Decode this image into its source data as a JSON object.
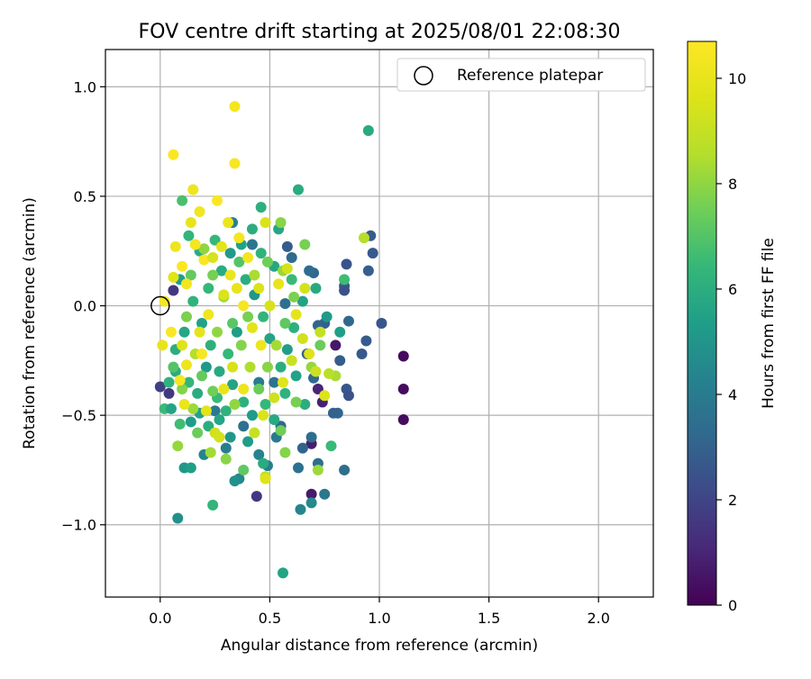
{
  "chart_data": {
    "type": "scatter",
    "title": "FOV centre drift starting at 2025/08/01 22:08:30",
    "xlabel": "Angular distance from reference (arcmin)",
    "ylabel": "Rotation from reference (arcmin)",
    "xlim": [
      -0.25,
      2.25
    ],
    "ylim": [
      -1.33,
      1.17
    ],
    "xticks": [
      0.0,
      0.5,
      1.0,
      1.5,
      2.0
    ],
    "yticks": [
      -1.0,
      -0.5,
      0.0,
      0.5,
      1.0
    ],
    "xtick_labels": [
      "0.0",
      "0.5",
      "1.0",
      "1.5",
      "2.0"
    ],
    "ytick_labels": [
      "−1.0",
      "−0.5",
      "0.0",
      "0.5",
      "1.0"
    ],
    "grid": true,
    "legend": {
      "position": "top-right",
      "entries": [
        "Reference platepar"
      ]
    },
    "reference_point": {
      "x": 0.0,
      "y": 0.0,
      "label": "Reference platepar"
    },
    "colorbar": {
      "label": "Hours from first FF file",
      "colormap": "viridis",
      "range": [
        0,
        10.7
      ],
      "ticks": [
        0,
        2,
        4,
        6,
        8,
        10
      ],
      "tick_labels": [
        "0",
        "2",
        "4",
        "6",
        "8",
        "10"
      ]
    },
    "points": [
      {
        "x": 1.11,
        "y": -0.23,
        "c": 0.3
      },
      {
        "x": 1.11,
        "y": -0.38,
        "c": 0.3
      },
      {
        "x": 1.11,
        "y": -0.52,
        "c": 0.3
      },
      {
        "x": 0.8,
        "y": -0.18,
        "c": 0.6
      },
      {
        "x": 0.69,
        "y": -0.86,
        "c": 0.7
      },
      {
        "x": 0.69,
        "y": -0.63,
        "c": 0.8
      },
      {
        "x": 0.72,
        "y": -0.38,
        "c": 1.0
      },
      {
        "x": 0.74,
        "y": -0.44,
        "c": 0.9
      },
      {
        "x": 0.44,
        "y": -0.87,
        "c": 1.6
      },
      {
        "x": 0.06,
        "y": 0.07,
        "c": 1.5
      },
      {
        "x": 0.04,
        "y": -0.4,
        "c": 1.6
      },
      {
        "x": 0.0,
        "y": -0.37,
        "c": 1.8
      },
      {
        "x": 1.01,
        "y": -0.08,
        "c": 2.6
      },
      {
        "x": 0.97,
        "y": 0.24,
        "c": 2.7
      },
      {
        "x": 0.96,
        "y": 0.32,
        "c": 2.8
      },
      {
        "x": 0.95,
        "y": 0.16,
        "c": 2.9
      },
      {
        "x": 0.94,
        "y": -0.16,
        "c": 2.8
      },
      {
        "x": 0.92,
        "y": -0.22,
        "c": 2.7
      },
      {
        "x": 0.85,
        "y": 0.19,
        "c": 2.5
      },
      {
        "x": 0.84,
        "y": 0.09,
        "c": 3.0
      },
      {
        "x": 0.84,
        "y": 0.07,
        "c": 2.4
      },
      {
        "x": 0.85,
        "y": -0.38,
        "c": 2.6
      },
      {
        "x": 0.86,
        "y": -0.41,
        "c": 2.5
      },
      {
        "x": 0.84,
        "y": -0.75,
        "c": 3.5
      },
      {
        "x": 0.82,
        "y": -0.25,
        "c": 2.8
      },
      {
        "x": 0.81,
        "y": -0.49,
        "c": 3.1
      },
      {
        "x": 0.79,
        "y": -0.49,
        "c": 3.0
      },
      {
        "x": 0.86,
        "y": -0.07,
        "c": 3.2
      },
      {
        "x": 0.75,
        "y": -0.08,
        "c": 2.9
      },
      {
        "x": 0.72,
        "y": -0.09,
        "c": 3.1
      },
      {
        "x": 0.7,
        "y": 0.15,
        "c": 3.2
      },
      {
        "x": 0.68,
        "y": 0.16,
        "c": 3.4
      },
      {
        "x": 0.67,
        "y": -0.22,
        "c": 3.0
      },
      {
        "x": 0.7,
        "y": -0.33,
        "c": 3.3
      },
      {
        "x": 0.69,
        "y": -0.6,
        "c": 3.4
      },
      {
        "x": 0.65,
        "y": -0.65,
        "c": 3.1
      },
      {
        "x": 0.63,
        "y": -0.74,
        "c": 3.6
      },
      {
        "x": 0.64,
        "y": -0.93,
        "c": 4.4
      },
      {
        "x": 0.69,
        "y": -0.9,
        "c": 4.6
      },
      {
        "x": 0.75,
        "y": -0.86,
        "c": 3.8
      },
      {
        "x": 0.72,
        "y": -0.72,
        "c": 3.5
      },
      {
        "x": 0.58,
        "y": 0.27,
        "c": 2.8
      },
      {
        "x": 0.6,
        "y": 0.22,
        "c": 3.3
      },
      {
        "x": 0.57,
        "y": 0.01,
        "c": 3.5
      },
      {
        "x": 0.52,
        "y": -0.35,
        "c": 3.7
      },
      {
        "x": 0.55,
        "y": -0.55,
        "c": 3.2
      },
      {
        "x": 0.53,
        "y": -0.6,
        "c": 3.9
      },
      {
        "x": 0.49,
        "y": -0.73,
        "c": 4.1
      },
      {
        "x": 0.45,
        "y": -0.68,
        "c": 4.3
      },
      {
        "x": 0.36,
        "y": -0.79,
        "c": 4.5
      },
      {
        "x": 0.34,
        "y": -0.8,
        "c": 4.8
      },
      {
        "x": 0.33,
        "y": 0.38,
        "c": 4.2
      },
      {
        "x": 0.42,
        "y": 0.28,
        "c": 3.8
      },
      {
        "x": 0.45,
        "y": -0.35,
        "c": 4.0
      },
      {
        "x": 0.38,
        "y": -0.55,
        "c": 3.6
      },
      {
        "x": 0.3,
        "y": -0.65,
        "c": 4.1
      },
      {
        "x": 0.25,
        "y": -0.48,
        "c": 3.9
      },
      {
        "x": 0.2,
        "y": -0.68,
        "c": 4.4
      },
      {
        "x": 0.08,
        "y": -0.97,
        "c": 4.8
      },
      {
        "x": 0.11,
        "y": -0.74,
        "c": 5.1
      },
      {
        "x": 0.14,
        "y": -0.74,
        "c": 5.4
      },
      {
        "x": 0.56,
        "y": -1.22,
        "c": 5.6
      },
      {
        "x": 0.95,
        "y": 0.8,
        "c": 5.8
      },
      {
        "x": 0.63,
        "y": 0.53,
        "c": 5.9
      },
      {
        "x": 0.46,
        "y": 0.45,
        "c": 6.1
      },
      {
        "x": 0.54,
        "y": 0.35,
        "c": 5.7
      },
      {
        "x": 0.42,
        "y": 0.35,
        "c": 6.0
      },
      {
        "x": 0.37,
        "y": 0.28,
        "c": 5.5
      },
      {
        "x": 0.32,
        "y": 0.24,
        "c": 5.2
      },
      {
        "x": 0.25,
        "y": 0.3,
        "c": 6.4
      },
      {
        "x": 0.18,
        "y": 0.25,
        "c": 5.9
      },
      {
        "x": 0.13,
        "y": 0.32,
        "c": 6.3
      },
      {
        "x": 0.1,
        "y": 0.48,
        "c": 6.8
      },
      {
        "x": 0.04,
        "y": -0.35,
        "c": 6.2
      },
      {
        "x": 0.02,
        "y": -0.47,
        "c": 6.5
      },
      {
        "x": 0.07,
        "y": -0.3,
        "c": 5.9
      },
      {
        "x": 0.05,
        "y": -0.47,
        "c": 5.6
      },
      {
        "x": 0.09,
        "y": -0.54,
        "c": 6.6
      },
      {
        "x": 0.14,
        "y": -0.53,
        "c": 5.3
      },
      {
        "x": 0.18,
        "y": -0.49,
        "c": 5.5
      },
      {
        "x": 0.22,
        "y": -0.55,
        "c": 6.0
      },
      {
        "x": 0.27,
        "y": -0.52,
        "c": 5.7
      },
      {
        "x": 0.3,
        "y": -0.48,
        "c": 6.2
      },
      {
        "x": 0.32,
        "y": -0.6,
        "c": 5.1
      },
      {
        "x": 0.4,
        "y": -0.62,
        "c": 5.3
      },
      {
        "x": 0.47,
        "y": -0.72,
        "c": 5.9
      },
      {
        "x": 0.24,
        "y": -0.91,
        "c": 6.3
      },
      {
        "x": 0.78,
        "y": -0.64,
        "c": 6.5
      },
      {
        "x": 0.84,
        "y": 0.12,
        "c": 6.6
      },
      {
        "x": 0.82,
        "y": -0.12,
        "c": 5.4
      },
      {
        "x": 0.76,
        "y": -0.05,
        "c": 5.2
      },
      {
        "x": 0.71,
        "y": 0.08,
        "c": 5.8
      },
      {
        "x": 0.65,
        "y": 0.02,
        "c": 5.5
      },
      {
        "x": 0.61,
        "y": -0.1,
        "c": 6.1
      },
      {
        "x": 0.58,
        "y": -0.2,
        "c": 5.4
      },
      {
        "x": 0.55,
        "y": -0.28,
        "c": 6.0
      },
      {
        "x": 0.5,
        "y": -0.15,
        "c": 5.6
      },
      {
        "x": 0.47,
        "y": -0.05,
        "c": 6.3
      },
      {
        "x": 0.43,
        "y": 0.05,
        "c": 5.1
      },
      {
        "x": 0.39,
        "y": 0.12,
        "c": 6.0
      },
      {
        "x": 0.35,
        "y": -0.12,
        "c": 5.3
      },
      {
        "x": 0.31,
        "y": -0.22,
        "c": 6.4
      },
      {
        "x": 0.27,
        "y": -0.3,
        "c": 5.8
      },
      {
        "x": 0.23,
        "y": -0.18,
        "c": 6.1
      },
      {
        "x": 0.19,
        "y": -0.08,
        "c": 5.5
      },
      {
        "x": 0.15,
        "y": 0.02,
        "c": 6.2
      },
      {
        "x": 0.11,
        "y": -0.12,
        "c": 5.7
      },
      {
        "x": 0.07,
        "y": -0.2,
        "c": 6.0
      },
      {
        "x": 0.09,
        "y": 0.12,
        "c": 5.4
      },
      {
        "x": 0.13,
        "y": -0.35,
        "c": 6.3
      },
      {
        "x": 0.17,
        "y": -0.4,
        "c": 5.9
      },
      {
        "x": 0.21,
        "y": -0.28,
        "c": 5.2
      },
      {
        "x": 0.26,
        "y": -0.42,
        "c": 6.5
      },
      {
        "x": 0.33,
        "y": -0.36,
        "c": 5.6
      },
      {
        "x": 0.38,
        "y": -0.44,
        "c": 6.1
      },
      {
        "x": 0.42,
        "y": -0.5,
        "c": 5.3
      },
      {
        "x": 0.48,
        "y": -0.45,
        "c": 6.4
      },
      {
        "x": 0.52,
        "y": -0.52,
        "c": 5.8
      },
      {
        "x": 0.57,
        "y": -0.4,
        "c": 6.2
      },
      {
        "x": 0.62,
        "y": -0.32,
        "c": 5.5
      },
      {
        "x": 0.66,
        "y": -0.45,
        "c": 6.0
      },
      {
        "x": 0.6,
        "y": 0.12,
        "c": 6.5
      },
      {
        "x": 0.52,
        "y": 0.18,
        "c": 5.7
      },
      {
        "x": 0.46,
        "y": 0.24,
        "c": 6.2
      },
      {
        "x": 0.28,
        "y": 0.16,
        "c": 5.9
      },
      {
        "x": 0.22,
        "y": 0.08,
        "c": 6.4
      },
      {
        "x": 0.66,
        "y": 0.28,
        "c": 7.6
      },
      {
        "x": 0.93,
        "y": 0.31,
        "c": 8.6
      },
      {
        "x": 0.8,
        "y": -0.32,
        "c": 8.4
      },
      {
        "x": 0.72,
        "y": -0.75,
        "c": 8.2
      },
      {
        "x": 0.57,
        "y": -0.67,
        "c": 7.8
      },
      {
        "x": 0.55,
        "y": -0.57,
        "c": 7.5
      },
      {
        "x": 0.48,
        "y": -0.78,
        "c": 8.7
      },
      {
        "x": 0.38,
        "y": -0.75,
        "c": 7.2
      },
      {
        "x": 0.3,
        "y": -0.7,
        "c": 7.9
      },
      {
        "x": 0.23,
        "y": -0.67,
        "c": 8.3
      },
      {
        "x": 0.17,
        "y": -0.58,
        "c": 7.4
      },
      {
        "x": 0.08,
        "y": -0.64,
        "c": 8.1
      },
      {
        "x": 0.06,
        "y": -0.28,
        "c": 7.0
      },
      {
        "x": 0.12,
        "y": -0.05,
        "c": 7.7
      },
      {
        "x": 0.14,
        "y": 0.14,
        "c": 7.3
      },
      {
        "x": 0.2,
        "y": 0.26,
        "c": 8.0
      },
      {
        "x": 0.24,
        "y": 0.14,
        "c": 7.6
      },
      {
        "x": 0.29,
        "y": 0.04,
        "c": 8.2
      },
      {
        "x": 0.33,
        "y": -0.08,
        "c": 7.1
      },
      {
        "x": 0.37,
        "y": -0.18,
        "c": 7.8
      },
      {
        "x": 0.41,
        "y": -0.28,
        "c": 8.5
      },
      {
        "x": 0.45,
        "y": -0.38,
        "c": 7.4
      },
      {
        "x": 0.49,
        "y": -0.28,
        "c": 7.9
      },
      {
        "x": 0.53,
        "y": -0.18,
        "c": 8.3
      },
      {
        "x": 0.57,
        "y": -0.08,
        "c": 7.2
      },
      {
        "x": 0.61,
        "y": 0.04,
        "c": 7.7
      },
      {
        "x": 0.56,
        "y": 0.16,
        "c": 8.1
      },
      {
        "x": 0.49,
        "y": 0.2,
        "c": 7.5
      },
      {
        "x": 0.43,
        "y": 0.14,
        "c": 8.4
      },
      {
        "x": 0.36,
        "y": 0.2,
        "c": 7.0
      },
      {
        "x": 0.4,
        "y": -0.05,
        "c": 7.6
      },
      {
        "x": 0.26,
        "y": -0.12,
        "c": 8.0
      },
      {
        "x": 0.19,
        "y": -0.32,
        "c": 7.3
      },
      {
        "x": 0.16,
        "y": -0.22,
        "c": 8.6
      },
      {
        "x": 0.1,
        "y": -0.38,
        "c": 7.8
      },
      {
        "x": 0.15,
        "y": -0.47,
        "c": 8.2
      },
      {
        "x": 0.24,
        "y": -0.39,
        "c": 7.5
      },
      {
        "x": 0.34,
        "y": -0.45,
        "c": 8.0
      },
      {
        "x": 0.62,
        "y": -0.44,
        "c": 7.6
      },
      {
        "x": 0.69,
        "y": -0.28,
        "c": 8.1
      },
      {
        "x": 0.73,
        "y": -0.18,
        "c": 7.4
      },
      {
        "x": 0.77,
        "y": -0.31,
        "c": 8.7
      },
      {
        "x": 0.55,
        "y": 0.38,
        "c": 7.9
      },
      {
        "x": 0.34,
        "y": 0.91,
        "c": 10.4
      },
      {
        "x": 0.06,
        "y": 0.69,
        "c": 10.6
      },
      {
        "x": 0.34,
        "y": 0.65,
        "c": 10.5
      },
      {
        "x": 0.15,
        "y": 0.53,
        "c": 10.2
      },
      {
        "x": 0.26,
        "y": 0.48,
        "c": 10.6
      },
      {
        "x": 0.18,
        "y": 0.43,
        "c": 10.3
      },
      {
        "x": 0.14,
        "y": 0.38,
        "c": 10.0
      },
      {
        "x": 0.31,
        "y": 0.38,
        "c": 10.1
      },
      {
        "x": 0.48,
        "y": 0.38,
        "c": 9.6
      },
      {
        "x": 0.36,
        "y": 0.31,
        "c": 10.4
      },
      {
        "x": 0.28,
        "y": 0.27,
        "c": 9.9
      },
      {
        "x": 0.07,
        "y": 0.27,
        "c": 10.2
      },
      {
        "x": 0.2,
        "y": 0.21,
        "c": 10.5
      },
      {
        "x": 0.1,
        "y": 0.18,
        "c": 10.6
      },
      {
        "x": 0.06,
        "y": 0.13,
        "c": 9.8
      },
      {
        "x": 0.12,
        "y": 0.1,
        "c": 10.3
      },
      {
        "x": 0.02,
        "y": 0.02,
        "c": 10.4
      },
      {
        "x": 0.01,
        "y": -0.18,
        "c": 10.0
      },
      {
        "x": 0.05,
        "y": -0.12,
        "c": 10.6
      },
      {
        "x": 0.1,
        "y": -0.18,
        "c": 9.7
      },
      {
        "x": 0.12,
        "y": -0.27,
        "c": 10.2
      },
      {
        "x": 0.09,
        "y": -0.34,
        "c": 10.5
      },
      {
        "x": 0.18,
        "y": -0.12,
        "c": 9.9
      },
      {
        "x": 0.22,
        "y": -0.04,
        "c": 10.3
      },
      {
        "x": 0.29,
        "y": 0.05,
        "c": 9.6
      },
      {
        "x": 0.32,
        "y": 0.14,
        "c": 10.1
      },
      {
        "x": 0.38,
        "y": 0.0,
        "c": 10.4
      },
      {
        "x": 0.42,
        "y": -0.1,
        "c": 9.8
      },
      {
        "x": 0.46,
        "y": -0.18,
        "c": 10.2
      },
      {
        "x": 0.5,
        "y": 0.0,
        "c": 9.5
      },
      {
        "x": 0.54,
        "y": 0.1,
        "c": 10.0
      },
      {
        "x": 0.58,
        "y": 0.17,
        "c": 9.4
      },
      {
        "x": 0.62,
        "y": -0.04,
        "c": 9.9
      },
      {
        "x": 0.65,
        "y": -0.15,
        "c": 9.3
      },
      {
        "x": 0.68,
        "y": -0.22,
        "c": 9.7
      },
      {
        "x": 0.71,
        "y": -0.3,
        "c": 9.2
      },
      {
        "x": 0.75,
        "y": -0.41,
        "c": 9.6
      },
      {
        "x": 0.73,
        "y": -0.12,
        "c": 9.0
      },
      {
        "x": 0.66,
        "y": 0.08,
        "c": 9.4
      },
      {
        "x": 0.6,
        "y": -0.25,
        "c": 9.1
      },
      {
        "x": 0.56,
        "y": -0.35,
        "c": 9.8
      },
      {
        "x": 0.52,
        "y": -0.42,
        "c": 9.2
      },
      {
        "x": 0.47,
        "y": -0.5,
        "c": 9.6
      },
      {
        "x": 0.43,
        "y": -0.58,
        "c": 9.0
      },
      {
        "x": 0.38,
        "y": -0.38,
        "c": 10.2
      },
      {
        "x": 0.33,
        "y": -0.28,
        "c": 9.5
      },
      {
        "x": 0.29,
        "y": -0.38,
        "c": 10.0
      },
      {
        "x": 0.25,
        "y": -0.58,
        "c": 9.3
      },
      {
        "x": 0.21,
        "y": -0.48,
        "c": 9.8
      },
      {
        "x": 0.11,
        "y": -0.45,
        "c": 10.1
      },
      {
        "x": 0.27,
        "y": -0.6,
        "c": 9.4
      },
      {
        "x": 0.48,
        "y": -0.79,
        "c": 9.7
      },
      {
        "x": 0.4,
        "y": 0.22,
        "c": 10.3
      },
      {
        "x": 0.45,
        "y": 0.08,
        "c": 9.6
      },
      {
        "x": 0.35,
        "y": 0.08,
        "c": 10.0
      },
      {
        "x": 0.24,
        "y": 0.22,
        "c": 9.5
      },
      {
        "x": 0.16,
        "y": 0.28,
        "c": 10.4
      },
      {
        "x": 0.19,
        "y": -0.22,
        "c": 10.5
      }
    ]
  }
}
